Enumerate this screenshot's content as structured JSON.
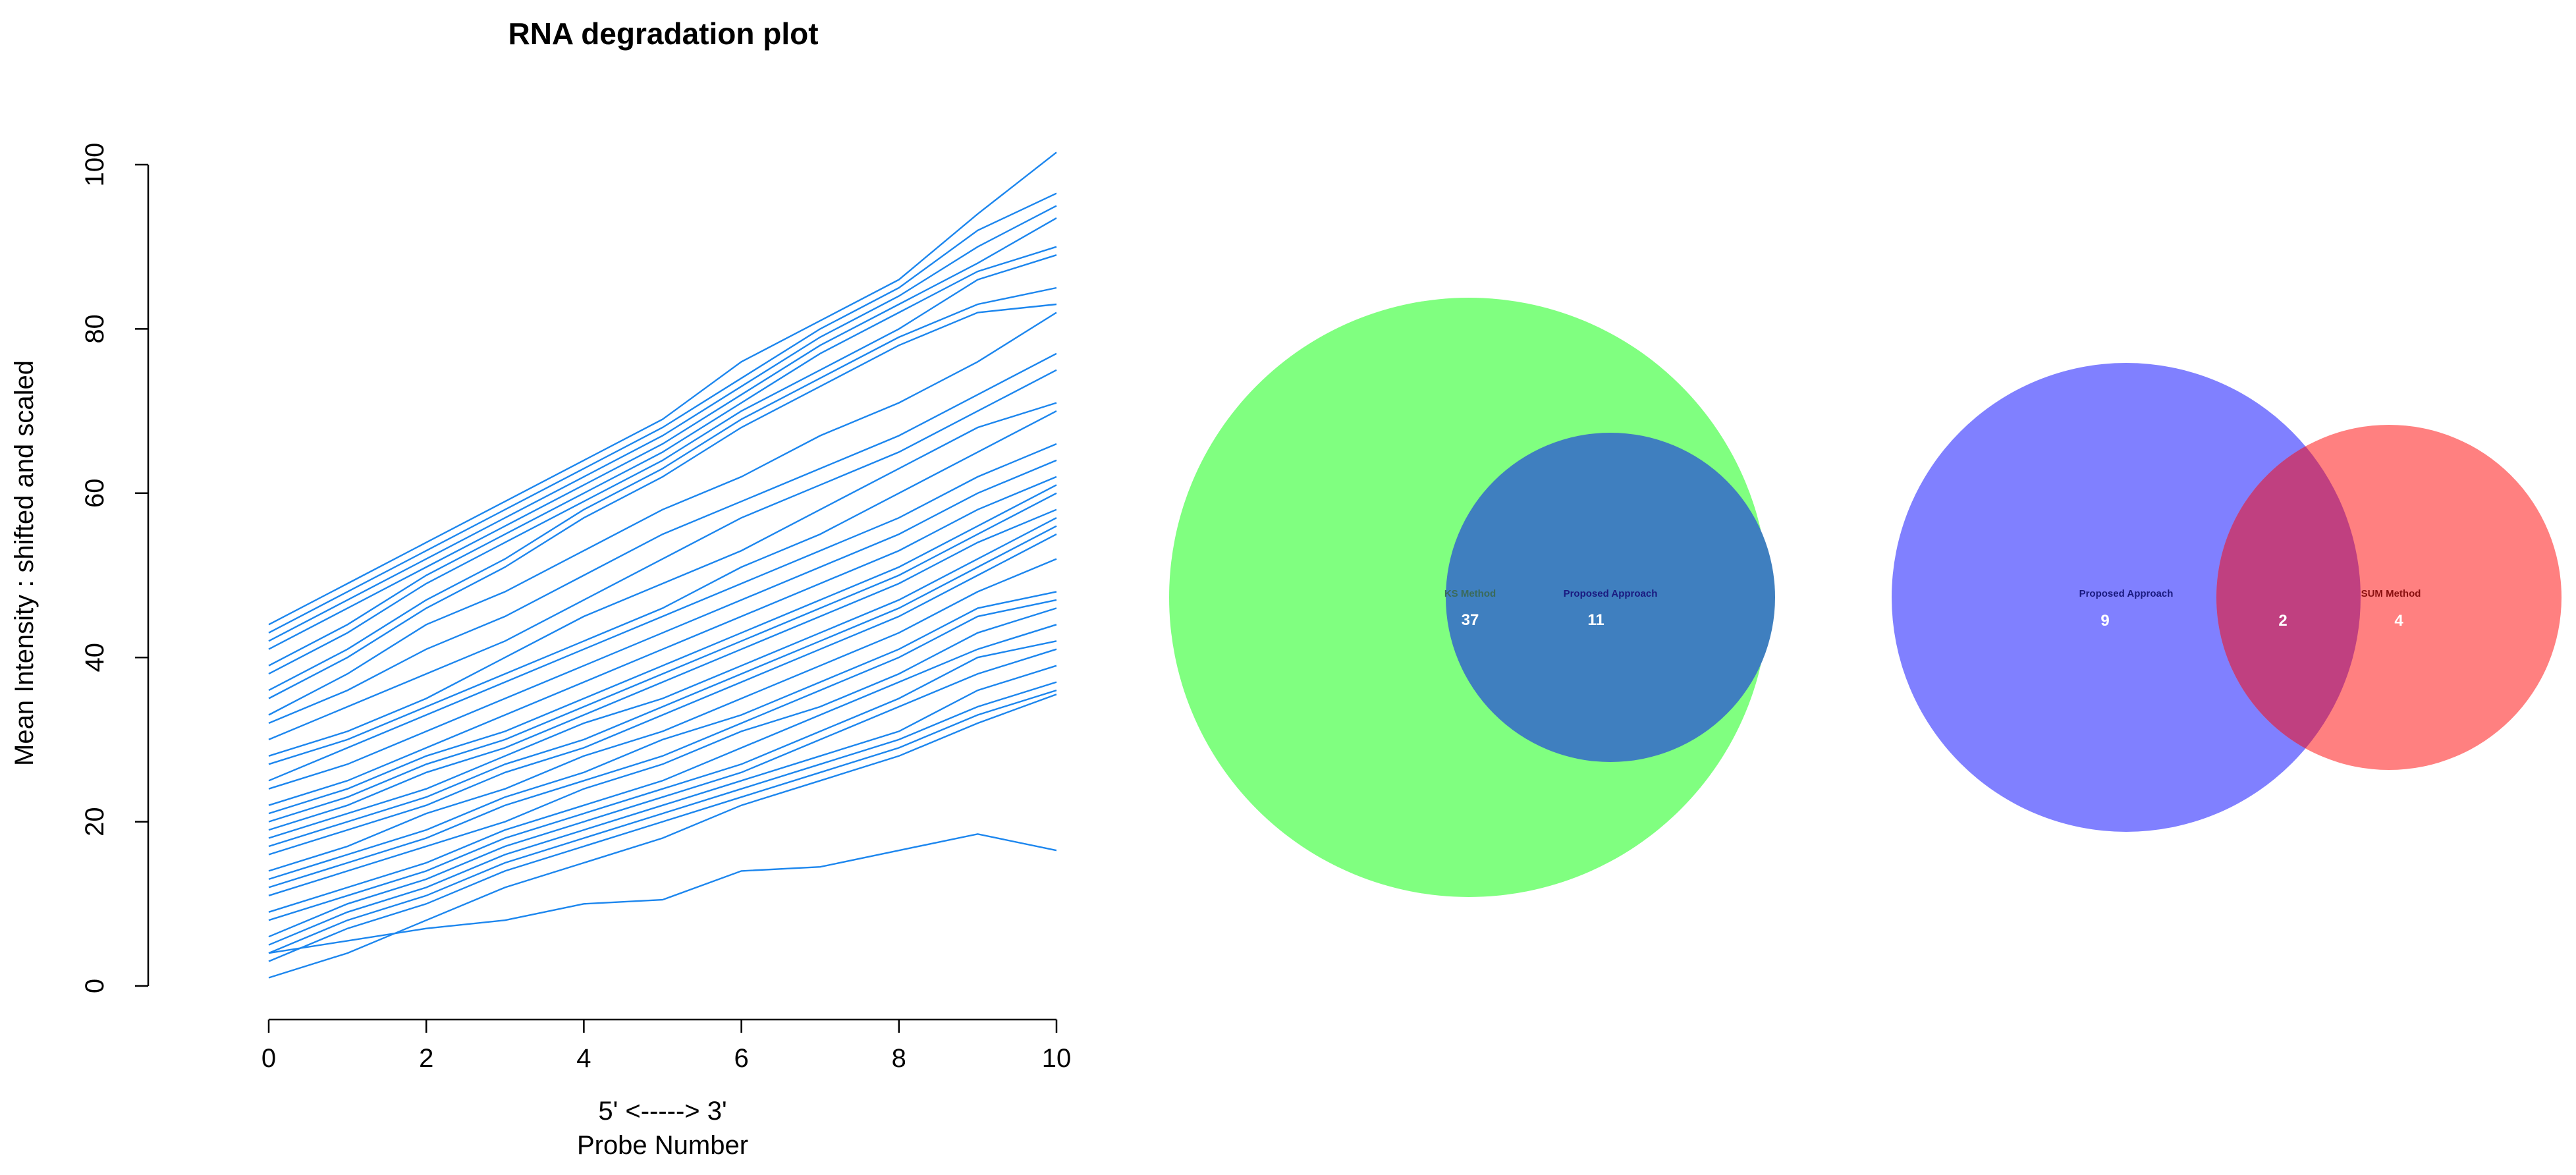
{
  "chart_data": [
    {
      "type": "line",
      "title": "RNA degradation plot",
      "xlabel": "Probe Number",
      "xlabel_secondary": "5' <-----> 3'",
      "ylabel": "Mean Intensity : shifted and scaled",
      "xlim": [
        0,
        10
      ],
      "ylim": [
        0,
        100
      ],
      "xticks": [
        "0",
        "2",
        "4",
        "6",
        "8",
        "10"
      ],
      "yticks": [
        "0",
        "20",
        "40",
        "60",
        "80",
        "100"
      ],
      "line_color": "#1c86ee",
      "grid": false,
      "x": [
        0,
        1,
        2,
        3,
        4,
        5,
        6,
        7,
        8,
        9,
        10
      ],
      "series": [
        {
          "values": [
            44,
            49,
            54,
            59,
            64,
            69,
            76,
            81,
            86,
            94,
            101.5
          ]
        },
        {
          "values": [
            43,
            48,
            53,
            58,
            63,
            68,
            74,
            80,
            85,
            92,
            96.5
          ]
        },
        {
          "values": [
            42,
            47,
            52,
            57,
            62,
            67,
            73,
            79,
            84,
            90,
            95
          ]
        },
        {
          "values": [
            41,
            46,
            51,
            56,
            61,
            66,
            72,
            78,
            83,
            88,
            93.5
          ]
        },
        {
          "values": [
            39,
            44,
            50,
            55,
            60,
            65,
            71,
            77,
            82,
            87,
            90
          ]
        },
        {
          "values": [
            38,
            43,
            49,
            54,
            59,
            64,
            70,
            75,
            80,
            86,
            89
          ]
        },
        {
          "values": [
            36,
            41,
            47,
            52,
            58,
            63,
            69,
            74,
            79,
            83,
            85
          ]
        },
        {
          "values": [
            35,
            40,
            46,
            51,
            57,
            62,
            68,
            73,
            78,
            82,
            83
          ]
        },
        {
          "values": [
            33,
            38,
            44,
            48,
            53,
            58,
            62,
            67,
            71,
            76,
            82
          ]
        },
        {
          "values": [
            32,
            36,
            41,
            45,
            50,
            55,
            59,
            63,
            67,
            72,
            77
          ]
        },
        {
          "values": [
            30,
            34,
            38,
            42,
            47,
            52,
            57,
            61,
            65,
            70,
            75
          ]
        },
        {
          "values": [
            28,
            31,
            35,
            40,
            45,
            49,
            53,
            58,
            63,
            68,
            71
          ]
        },
        {
          "values": [
            27,
            30,
            34,
            38,
            42,
            46,
            51,
            55,
            60,
            65,
            70
          ]
        },
        {
          "values": [
            25,
            29,
            33,
            37,
            41,
            45,
            49,
            53,
            57,
            62,
            66
          ]
        },
        {
          "values": [
            24,
            27,
            31,
            35,
            39,
            43,
            47,
            51,
            55,
            60,
            64
          ]
        },
        {
          "values": [
            22,
            25,
            29,
            33,
            37,
            41,
            45,
            49,
            53,
            58,
            62
          ]
        },
        {
          "values": [
            21,
            24,
            28,
            31,
            35,
            39,
            43,
            47,
            51,
            56,
            61
          ]
        },
        {
          "values": [
            20,
            23,
            27,
            30,
            34,
            38,
            42,
            46,
            50,
            55,
            60
          ]
        },
        {
          "values": [
            19,
            22,
            26,
            29,
            33,
            37,
            41,
            45,
            49,
            54,
            58
          ]
        },
        {
          "values": [
            18,
            21,
            24,
            28,
            32,
            35,
            39,
            43,
            47,
            52,
            57
          ]
        },
        {
          "values": [
            17,
            20,
            23,
            27,
            30,
            34,
            38,
            42,
            46,
            51,
            56
          ]
        },
        {
          "values": [
            16,
            19,
            22,
            26,
            29,
            33,
            37,
            41,
            45,
            50,
            55
          ]
        },
        {
          "values": [
            14,
            17,
            21,
            24,
            28,
            31,
            35,
            39,
            43,
            48,
            52
          ]
        },
        {
          "values": [
            13,
            16,
            19,
            23,
            26,
            30,
            33,
            37,
            41,
            46,
            48
          ]
        },
        {
          "values": [
            12,
            15,
            18,
            22,
            25,
            28,
            32,
            36,
            40,
            45,
            47
          ]
        },
        {
          "values": [
            11,
            14,
            17,
            20,
            24,
            27,
            31,
            34,
            38,
            43,
            46
          ]
        },
        {
          "values": [
            9,
            12,
            15,
            19,
            22,
            25,
            29,
            33,
            37,
            41,
            44
          ]
        },
        {
          "values": [
            8,
            11,
            14,
            18,
            21,
            24,
            27,
            31,
            35,
            40,
            42
          ]
        },
        {
          "values": [
            6,
            10,
            13,
            17,
            20,
            23,
            26,
            30,
            34,
            38,
            41
          ]
        },
        {
          "values": [
            5,
            9,
            12,
            16,
            19,
            22,
            25,
            28,
            31,
            36,
            39
          ]
        },
        {
          "values": [
            4,
            8,
            11,
            15,
            18,
            21,
            24,
            27,
            30,
            34,
            37
          ]
        },
        {
          "values": [
            3,
            7,
            10,
            14,
            17,
            20,
            23,
            26,
            29,
            33,
            36
          ]
        },
        {
          "values": [
            1,
            4,
            8,
            12,
            15,
            18,
            22,
            25,
            28,
            32,
            35.5
          ]
        },
        {
          "values": [
            4,
            5.5,
            7,
            8,
            10,
            10.5,
            14,
            14.5,
            16.5,
            18.5,
            16.5
          ]
        }
      ]
    },
    {
      "type": "venn",
      "sets": [
        {
          "label": "KS Method",
          "color": "#80ff80",
          "only_count": "37"
        },
        {
          "label": "Proposed Approach",
          "color": "#4080c0",
          "only_count": "11"
        }
      ],
      "overlap_color": "#3f7fbf"
    },
    {
      "type": "venn",
      "sets": [
        {
          "label": "Proposed Approach",
          "color": "#8080ff",
          "only_count": "9"
        },
        {
          "label": "SUM Method",
          "color": "#ff8080",
          "only_count": "4"
        }
      ],
      "intersection_count": "2",
      "overlap_color": "#c04080"
    }
  ]
}
